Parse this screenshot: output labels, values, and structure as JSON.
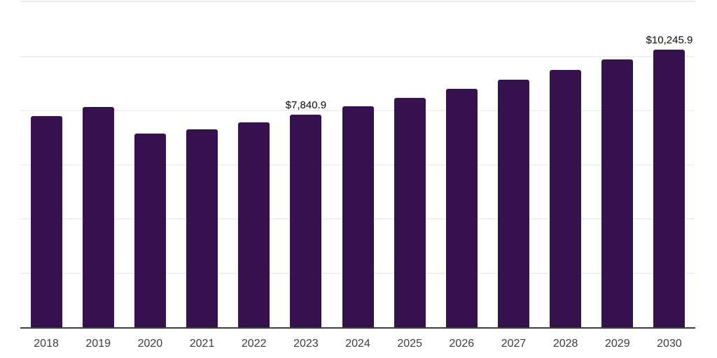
{
  "chart_data": {
    "type": "bar",
    "title": "",
    "xlabel": "",
    "ylabel": "",
    "categories": [
      "2018",
      "2019",
      "2020",
      "2021",
      "2022",
      "2023",
      "2024",
      "2025",
      "2026",
      "2027",
      "2028",
      "2029",
      "2030"
    ],
    "values": [
      7790,
      8130,
      7140,
      7300,
      7560,
      7840.9,
      8145,
      8460,
      8790,
      9130,
      9485,
      9890,
      10245.9
    ],
    "value_labels": [
      "",
      "",
      "",
      "",
      "",
      "$7,840.9",
      "",
      "",
      "",
      "",
      "",
      "",
      "$10,245.9"
    ],
    "ylim": [
      0,
      12000
    ],
    "gridline_values": [
      2000,
      4000,
      6000,
      8000,
      10000
    ],
    "grid": "horizontal-only",
    "legend": "none",
    "colors": {
      "bar": "#35114E",
      "gridline": "#F2F2F2",
      "top_border": "#EAEAEA",
      "axis_line": "#3F3F3F",
      "value_label": "#0A0A0A",
      "tick_label": "#3D3D3D",
      "background": "#FFFFFF"
    }
  }
}
